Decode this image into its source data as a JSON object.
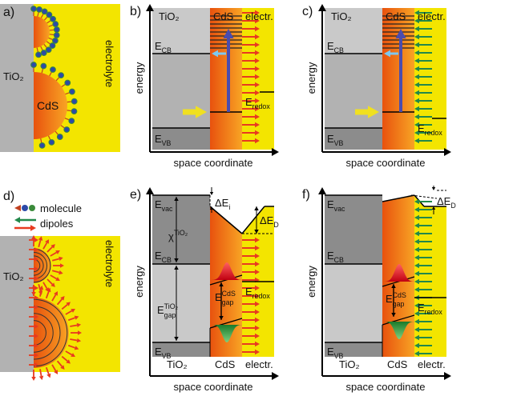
{
  "panels": {
    "a": {
      "label": "a)",
      "tio2": "TiO₂",
      "cds": "CdS",
      "electrolyte": "electrolyte"
    },
    "b": {
      "label": "b)",
      "y_axis": "energy",
      "x_axis": "space coordinate",
      "tio2": "TiO₂",
      "cds": "CdS",
      "electrolyte": "electr.",
      "ecb": {
        "base": "E",
        "sub": "CB"
      },
      "evb": {
        "base": "E",
        "sub": "VB"
      },
      "eredox": {
        "base": "E",
        "sub": "redox"
      }
    },
    "c": {
      "label": "c)",
      "y_axis": "energy",
      "x_axis": "space coordinate",
      "tio2": "TiO₂",
      "cds": "CdS",
      "electrolyte": "electr.",
      "ecb": {
        "base": "E",
        "sub": "CB"
      },
      "evb": {
        "base": "E",
        "sub": "VB"
      },
      "eredox": {
        "base": "E",
        "sub": "redox"
      }
    },
    "d": {
      "label": "d)",
      "legend": [
        "molecule",
        "dipoles"
      ],
      "tio2": "TiO₂",
      "electrolyte": "electrolyte"
    },
    "e": {
      "label": "e)",
      "y_axis": "energy",
      "x_axis": "space coordinate",
      "tio2": "TiO₂",
      "cds": "CdS",
      "electrolyte": "electr.",
      "evac": {
        "base": "E",
        "sub": "vac"
      },
      "ecb": {
        "base": "E",
        "sub": "CB"
      },
      "evb": {
        "base": "E",
        "sub": "VB"
      },
      "eredox": {
        "base": "E",
        "sub": "redox"
      },
      "delta_ei": {
        "base": "ΔE",
        "sub": "i"
      },
      "delta_ed": {
        "base": "ΔE",
        "sub": "D"
      },
      "chi": {
        "base": "χ",
        "sup": "TiO₂"
      },
      "egap_tio2": {
        "base": "E",
        "sup": "TiO₂",
        "sub": "gap"
      },
      "egap_cds": {
        "base": "E",
        "sup": "CdS",
        "sub": "gap"
      }
    },
    "f": {
      "label": "f)",
      "y_axis": "energy",
      "x_axis": "space coordinate",
      "tio2": "TiO₂",
      "cds": "CdS",
      "electrolyte": "electr.",
      "evac": {
        "base": "E",
        "sub": "vac"
      },
      "ecb": {
        "base": "E",
        "sub": "CB"
      },
      "evb": {
        "base": "E",
        "sub": "VB"
      },
      "eredox": {
        "base": "E",
        "sub": "redox"
      },
      "delta_ed": {
        "base": "ΔE",
        "sub": "D"
      },
      "egap_cds": {
        "base": "E",
        "sup": "CdS",
        "sub": "gap"
      }
    }
  }
}
